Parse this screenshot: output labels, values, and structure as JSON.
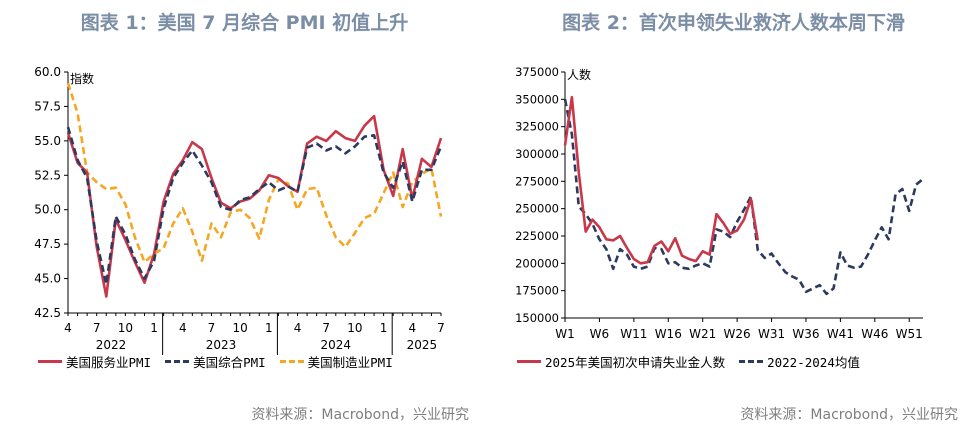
{
  "colors": {
    "red": "#c8384a",
    "navy": "#2b3a5e",
    "orange": "#f5a623",
    "title": "#7b8ea6"
  },
  "chart_data": [
    {
      "type": "line",
      "title": "图表 1：美国 7 月综合 PMI 初值上升",
      "ylabel": "指数",
      "ylim": [
        42.5,
        60.0
      ],
      "yticks": [
        "60.0",
        "57.5",
        "55.0",
        "52.5",
        "50.0",
        "47.5",
        "45.0",
        "42.5"
      ],
      "ytick_values": [
        60.0,
        57.5,
        55.0,
        52.5,
        50.0,
        47.5,
        45.0,
        42.5
      ],
      "month_ticks": [
        "4",
        "7",
        "10",
        "1",
        "4",
        "7",
        "10",
        "1",
        "4",
        "7",
        "10",
        "1",
        "4",
        "7"
      ],
      "year_labels": [
        "2022",
        "2023",
        "2024",
        "2025"
      ],
      "source": "资料来源：Macrobond，兴业研究",
      "series": [
        {
          "name": "美国服务业PMI",
          "color": "#c8384a",
          "values": [
            55.6,
            53.4,
            52.7,
            47.3,
            43.7,
            49.3,
            47.8,
            46.2,
            44.7,
            46.8,
            50.6,
            52.6,
            53.6,
            54.9,
            54.4,
            52.3,
            50.5,
            50.1,
            50.6,
            50.8,
            51.4,
            52.5,
            52.3,
            51.7,
            51.3,
            54.8,
            55.3,
            55.0,
            55.7,
            55.2,
            55.0,
            56.1,
            56.8,
            52.9,
            51.0,
            54.4,
            50.8,
            53.7,
            53.1,
            55.2
          ]
        },
        {
          "name": "美国综合PMI",
          "color": "#2b3a5e",
          "values": [
            56.0,
            53.6,
            52.3,
            47.7,
            44.6,
            49.5,
            48.2,
            46.4,
            45.0,
            46.3,
            50.1,
            52.3,
            53.4,
            54.3,
            53.2,
            52.0,
            50.2,
            50.0,
            50.7,
            50.9,
            51.5,
            52.0,
            51.4,
            51.7,
            51.3,
            54.5,
            54.8,
            54.3,
            54.6,
            54.1,
            54.6,
            55.3,
            55.4,
            52.7,
            51.6,
            53.5,
            50.6,
            52.9,
            52.9,
            54.6
          ]
        },
        {
          "name": "美国制造业PMI",
          "color": "#f5a623",
          "values": [
            59.2,
            57.0,
            52.7,
            52.0,
            51.5,
            51.6,
            50.4,
            48.0,
            46.2,
            46.8,
            47.2,
            49.0,
            50.1,
            48.4,
            46.3,
            49.0,
            48.0,
            49.8,
            50.0,
            49.4,
            47.9,
            50.7,
            52.2,
            51.9,
            50.0,
            51.5,
            51.6,
            49.6,
            48.0,
            47.3,
            48.3,
            49.4,
            49.7,
            51.2,
            52.7,
            50.2,
            52.0,
            52.6,
            53.0,
            49.5
          ]
        }
      ]
    },
    {
      "type": "line",
      "title": "图表 2：首次申领失业救济人数本周下滑",
      "ylabel": "人数",
      "ylim": [
        150000,
        375000
      ],
      "yticks": [
        "375000",
        "350000",
        "325000",
        "300000",
        "275000",
        "250000",
        "225000",
        "200000",
        "175000",
        "150000"
      ],
      "ytick_values": [
        375000,
        350000,
        325000,
        300000,
        275000,
        250000,
        225000,
        200000,
        175000,
        150000
      ],
      "x_labels": [
        "W1",
        "W6",
        "W11",
        "W16",
        "W21",
        "W26",
        "W31",
        "W36",
        "W41",
        "W46",
        "W51"
      ],
      "x_label_weeks": [
        1,
        6,
        11,
        16,
        21,
        26,
        31,
        36,
        41,
        46,
        51
      ],
      "source": "资料来源：Macrobond，兴业研究",
      "series": [
        {
          "name": "2025年美国初次申请失业金人数",
          "color": "#c8384a",
          "weeks": [
            1,
            2,
            3,
            4,
            5,
            6,
            7,
            8,
            9,
            10,
            11,
            12,
            13,
            14,
            15,
            16,
            17,
            18,
            19,
            20,
            21,
            22,
            23,
            24,
            25,
            26,
            27,
            28,
            29
          ],
          "values": [
            308000,
            352000,
            283000,
            229000,
            240000,
            233000,
            222000,
            221000,
            225000,
            214000,
            204000,
            200000,
            201000,
            216000,
            220000,
            211000,
            223000,
            207000,
            204000,
            202000,
            211000,
            208000,
            245000,
            237000,
            227000,
            230000,
            240000,
            259000,
            221000
          ]
        },
        {
          "name": "2022-2024均值",
          "color": "#2b3a5e",
          "weeks": [
            1,
            2,
            3,
            4,
            5,
            6,
            7,
            8,
            9,
            10,
            11,
            12,
            13,
            14,
            15,
            16,
            17,
            18,
            19,
            20,
            21,
            22,
            23,
            24,
            25,
            26,
            27,
            28,
            29,
            30,
            31,
            32,
            33,
            34,
            35,
            36,
            37,
            38,
            39,
            40,
            41,
            42,
            43,
            44,
            45,
            46,
            47,
            48,
            49,
            50,
            51,
            52,
            53
          ],
          "values": [
            350000,
            318000,
            252000,
            245000,
            236000,
            222000,
            213000,
            195000,
            213000,
            208000,
            197000,
            195000,
            197000,
            214000,
            213000,
            200000,
            201000,
            196000,
            195000,
            198000,
            200000,
            197000,
            231000,
            229000,
            224000,
            238000,
            249000,
            261000,
            212000,
            205000,
            209000,
            200000,
            192000,
            188000,
            185000,
            174000,
            177000,
            180000,
            172000,
            177000,
            210000,
            198000,
            196000,
            197000,
            208000,
            221000,
            233000,
            222000,
            263000,
            268000,
            248000,
            272000,
            277000
          ]
        }
      ]
    }
  ]
}
